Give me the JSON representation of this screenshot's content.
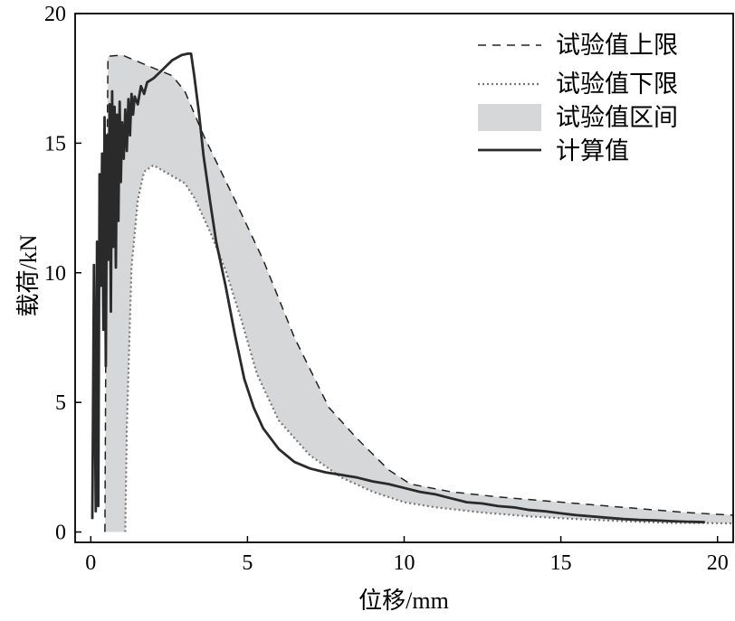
{
  "chart_data": {
    "type": "area",
    "xlabel": "位移/mm",
    "ylabel": "载荷/kN",
    "xlim": [
      -0.5,
      20.5
    ],
    "ylim": [
      -0.4,
      20
    ],
    "xticks": [
      0,
      5,
      10,
      15,
      20
    ],
    "yticks": [
      0,
      5,
      10,
      15,
      20
    ],
    "grid": false,
    "legend_position": "top-right",
    "colors": {
      "upper": "#222222",
      "lower": "#777777",
      "band": "#d6d7d9",
      "calc": "#2a2a2a"
    },
    "series": [
      {
        "name": "试验值上限",
        "style": "dashed",
        "x": [
          0.45,
          0.5,
          0.55,
          1.0,
          1.8,
          2.6,
          3.0,
          3.6,
          4.6,
          5.5,
          6.5,
          7.6,
          8.5,
          9.5,
          10.2,
          11.5,
          13,
          14.5,
          16,
          17.5,
          19,
          20.5
        ],
        "y": [
          0.0,
          12.0,
          18.35,
          18.4,
          18.0,
          17.6,
          17.0,
          15.3,
          12.8,
          10.5,
          7.5,
          4.8,
          3.6,
          2.4,
          1.85,
          1.55,
          1.35,
          1.2,
          1.05,
          0.9,
          0.75,
          0.65
        ]
      },
      {
        "name": "试验值下限",
        "style": "dotted",
        "x": [
          1.1,
          1.15,
          1.3,
          1.5,
          1.7,
          2.0,
          2.5,
          3.0,
          3.3,
          3.8,
          4.3,
          4.8,
          5.3,
          6.0,
          7.0,
          8.0,
          9.0,
          10.0,
          11.0,
          12.5,
          14,
          15.5,
          17,
          18.5,
          19.5,
          20.5
        ],
        "y": [
          0.0,
          4.0,
          10.2,
          12.8,
          13.9,
          14.15,
          13.8,
          13.45,
          12.9,
          11.6,
          10.1,
          8.2,
          6.1,
          4.3,
          2.95,
          2.1,
          1.55,
          1.15,
          0.95,
          0.75,
          0.6,
          0.5,
          0.42,
          0.35,
          0.35,
          0.33
        ]
      },
      {
        "name": "试验值区间",
        "style": "filled-band"
      },
      {
        "name": "计算值",
        "style": "solid",
        "x": [
          0.05,
          0.1,
          0.13,
          0.16,
          0.2,
          0.24,
          0.28,
          0.32,
          0.36,
          0.4,
          0.44,
          0.48,
          0.52,
          0.56,
          0.6,
          0.64,
          0.68,
          0.72,
          0.76,
          0.8,
          0.84,
          0.88,
          0.92,
          0.96,
          1.0,
          1.05,
          1.1,
          1.15,
          1.2,
          1.25,
          1.3,
          1.35,
          1.4,
          1.5,
          1.6,
          1.7,
          1.8,
          2.0,
          2.3,
          2.6,
          2.9,
          3.1,
          3.2,
          3.3,
          3.45,
          3.6,
          3.8,
          4.0,
          4.3,
          4.6,
          4.9,
          5.2,
          5.5,
          6.0,
          6.5,
          7.0,
          7.5,
          8.0,
          8.5,
          9.0,
          9.5,
          10.0,
          10.5,
          11.0,
          11.5,
          12.0,
          12.5,
          13.0,
          13.5,
          14.0,
          14.5,
          15.0,
          15.5,
          16.0,
          16.5,
          17.0,
          17.5,
          18.0,
          18.5,
          19.0,
          19.6
        ],
        "y": [
          0.5,
          10.3,
          5.0,
          0.8,
          11.2,
          1.0,
          13.8,
          9.5,
          14.6,
          7.8,
          16.0,
          6.4,
          15.3,
          10.5,
          16.5,
          8.5,
          17.0,
          11.0,
          16.4,
          10.2,
          16.1,
          12.0,
          16.6,
          13.5,
          15.8,
          14.4,
          16.3,
          14.7,
          16.7,
          15.3,
          16.9,
          16.1,
          16.8,
          16.5,
          17.2,
          16.9,
          17.35,
          17.5,
          17.85,
          18.2,
          18.4,
          18.45,
          18.45,
          17.6,
          16.2,
          14.5,
          12.8,
          11.2,
          9.5,
          7.6,
          5.9,
          4.8,
          4.0,
          3.2,
          2.7,
          2.45,
          2.3,
          2.2,
          2.1,
          1.95,
          1.85,
          1.7,
          1.55,
          1.45,
          1.3,
          1.15,
          1.1,
          1.0,
          0.95,
          0.85,
          0.8,
          0.72,
          0.65,
          0.6,
          0.55,
          0.5,
          0.47,
          0.45,
          0.42,
          0.4,
          0.38
        ]
      }
    ]
  }
}
